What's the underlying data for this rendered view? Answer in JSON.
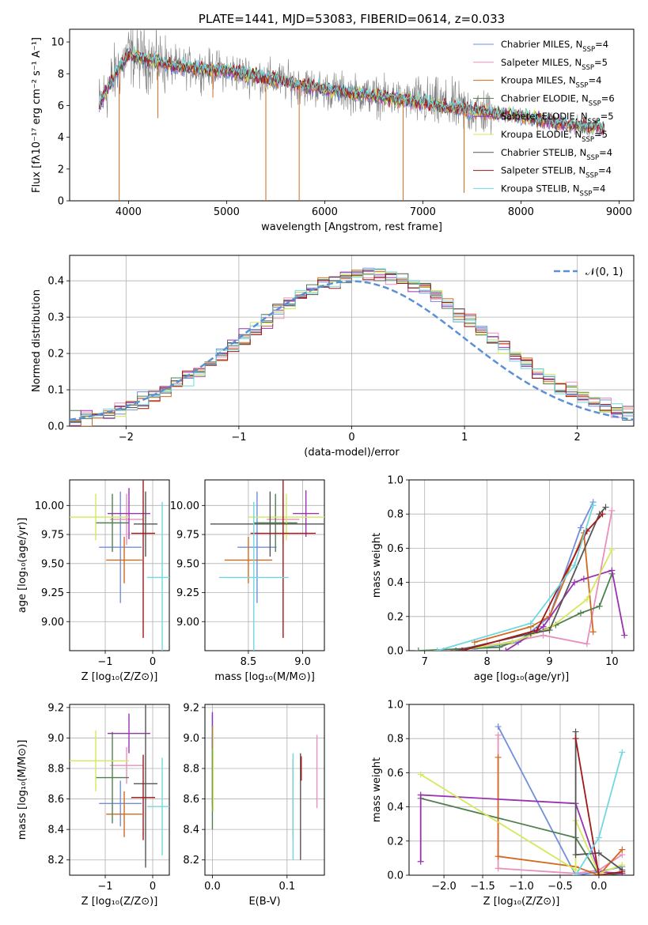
{
  "colors": {
    "chabrier_miles": "#6f8fdc",
    "salpeter_miles": "#e88fbe",
    "kroupa_miles": "#d2691e",
    "chabrier_elodie": "#4f7f4f",
    "salpeter_elodie": "#9932b0",
    "kroupa_elodie": "#d4e85a",
    "chabrier_stelib": "#555555",
    "salpeter_stelib": "#a01818",
    "kroupa_stelib": "#70d8e0",
    "data": "#808080",
    "normal": "#5b8fd6"
  },
  "chart_data": [
    {
      "id": "spectrum",
      "type": "line",
      "title": "PLATE=1441, MJD=53083, FIBERID=0614, z=0.033",
      "xlabel": "wavelength [Angstrom, rest frame]",
      "ylabel": "Flux [fλ10⁻¹⁷ erg cm⁻² s⁻¹ A⁻¹]",
      "xlim": [
        3400,
        9150
      ],
      "ylim": [
        0,
        10.8
      ],
      "xticks": [
        "4000",
        "5000",
        "6000",
        "7000",
        "8000",
        "9000"
      ],
      "yticks": [
        "0",
        "2",
        "4",
        "6",
        "8",
        "10"
      ],
      "grid": false,
      "legend_position": "upper-right",
      "series": [
        {
          "name": "Chabrier MILES, N",
          "sub": "SSP",
          "suffix": "=4",
          "color_key": "chabrier_miles"
        },
        {
          "name": "Salpeter MILES, N",
          "sub": "SSP",
          "suffix": "=5",
          "color_key": "salpeter_miles"
        },
        {
          "name": "Kroupa MILES, N",
          "sub": "SSP",
          "suffix": "=4",
          "color_key": "kroupa_miles"
        },
        {
          "name": "Chabrier ELODIE, N",
          "sub": "SSP",
          "suffix": "=6",
          "color_key": "chabrier_elodie"
        },
        {
          "name": "Salpeter ELODIE, N",
          "sub": "SSP",
          "suffix": "=5",
          "color_key": "salpeter_elodie"
        },
        {
          "name": "Kroupa ELODIE, N",
          "sub": "SSP",
          "suffix": "=5",
          "color_key": "kroupa_elodie"
        },
        {
          "name": "Chabrier STELIB, N",
          "sub": "SSP",
          "suffix": "=4",
          "color_key": "chabrier_stelib"
        },
        {
          "name": "Salpeter STELIB, N",
          "sub": "SSP",
          "suffix": "=4",
          "color_key": "salpeter_stelib"
        },
        {
          "name": "Kroupa STELIB, N",
          "sub": "SSP",
          "suffix": "=4",
          "color_key": "kroupa_stelib"
        }
      ],
      "continuum": [
        [
          3700,
          6.0
        ],
        [
          3800,
          7.2
        ],
        [
          3900,
          8.3
        ],
        [
          4000,
          9.2
        ],
        [
          4200,
          8.9
        ],
        [
          4500,
          8.4
        ],
        [
          5000,
          8.2
        ],
        [
          5500,
          7.6
        ],
        [
          6000,
          7.0
        ],
        [
          6500,
          6.6
        ],
        [
          7000,
          6.2
        ],
        [
          7500,
          5.7
        ],
        [
          8000,
          5.3
        ],
        [
          8500,
          4.8
        ],
        [
          8850,
          4.6
        ]
      ],
      "spikes": [
        [
          3905,
          0
        ],
        [
          4300,
          5.2
        ],
        [
          4860,
          6.5
        ],
        [
          5400,
          0
        ],
        [
          5740,
          0
        ],
        [
          6800,
          0
        ],
        [
          7420,
          0.5
        ]
      ]
    },
    {
      "id": "residuals",
      "type": "histogram",
      "xlabel": "(data-model)/error",
      "ylabel": "Normed distribution",
      "xlim": [
        -2.5,
        2.5
      ],
      "ylim": [
        0,
        0.47
      ],
      "xticks": [
        "−2",
        "−1",
        "0",
        "1",
        "2"
      ],
      "yticks": [
        "0.0",
        "0.1",
        "0.2",
        "0.3",
        "0.4"
      ],
      "grid": true,
      "legend_position": "upper-right",
      "reference_curve": {
        "name": "𝒩(0, 1)",
        "mean": 0,
        "sigma": 1
      },
      "bin_width": 0.1
    },
    {
      "id": "age_vs_Z",
      "type": "errorbar",
      "xlabel": "Z [log₁₀(Z/Z⊙)]",
      "ylabel": "age  [log₁₀(age/yr)]",
      "xlim": [
        -1.75,
        0.35
      ],
      "ylim": [
        8.75,
        10.22
      ],
      "xticks": [
        "−1",
        "0"
      ],
      "yticks": [
        "9.00",
        "9.25",
        "9.50",
        "9.75",
        "10.00"
      ],
      "grid": true,
      "points": [
        {
          "key": "chabrier_miles",
          "x": -0.68,
          "y": 9.64,
          "xerr": 0.45,
          "yerr": 0.48
        },
        {
          "key": "salpeter_miles",
          "x": -0.55,
          "y": 9.88,
          "xerr": 0.35,
          "yerr": 0.22
        },
        {
          "key": "kroupa_miles",
          "x": -0.6,
          "y": 9.53,
          "xerr": 0.38,
          "yerr": 0.2
        },
        {
          "key": "chabrier_elodie",
          "x": -0.85,
          "y": 9.85,
          "xerr": 0.35,
          "yerr": 0.25
        },
        {
          "key": "salpeter_elodie",
          "x": -0.5,
          "y": 9.93,
          "xerr": 0.45,
          "yerr": 0.22
        },
        {
          "key": "kroupa_elodie",
          "x": -1.2,
          "y": 9.9,
          "xerr": 0.7,
          "yerr": 0.2
        },
        {
          "key": "chabrier_stelib",
          "x": -0.15,
          "y": 9.84,
          "xerr": 0.25,
          "yerr": 0.28
        },
        {
          "key": "salpeter_stelib",
          "x": -0.2,
          "y": 9.76,
          "xerr": 0.25,
          "yerr": 0.9
        },
        {
          "key": "kroupa_stelib",
          "x": 0.2,
          "y": 9.38,
          "xerr": 0.32,
          "yerr": 0.65
        }
      ]
    },
    {
      "id": "age_vs_mass",
      "type": "errorbar",
      "xlabel": "mass [log₁₀(M/M⊙)]",
      "ylabel": "",
      "xlim": [
        8.1,
        9.2
      ],
      "ylim": [
        8.75,
        10.22
      ],
      "xticks": [
        "8.5",
        "9.0"
      ],
      "yticks": [
        "9.00",
        "9.25",
        "9.50",
        "9.75",
        "10.00"
      ],
      "grid": true,
      "points": [
        {
          "key": "chabrier_miles",
          "x": 8.58,
          "y": 9.64,
          "xerr": 0.18,
          "yerr": 0.48
        },
        {
          "key": "salpeter_miles",
          "x": 8.82,
          "y": 9.88,
          "xerr": 0.15,
          "yerr": 0.22
        },
        {
          "key": "kroupa_miles",
          "x": 8.5,
          "y": 9.53,
          "xerr": 0.22,
          "yerr": 0.2
        },
        {
          "key": "chabrier_elodie",
          "x": 8.75,
          "y": 9.85,
          "xerr": 0.2,
          "yerr": 0.25
        },
        {
          "key": "salpeter_elodie",
          "x": 9.03,
          "y": 9.93,
          "xerr": 0.12,
          "yerr": 0.2
        },
        {
          "key": "kroupa_elodie",
          "x": 8.85,
          "y": 9.9,
          "xerr": 0.35,
          "yerr": 0.2
        },
        {
          "key": "chabrier_stelib",
          "x": 8.7,
          "y": 9.84,
          "xerr": 0.55,
          "yerr": 0.28
        },
        {
          "key": "salpeter_stelib",
          "x": 8.82,
          "y": 9.76,
          "xerr": 0.3,
          "yerr": 0.9
        },
        {
          "key": "kroupa_stelib",
          "x": 8.55,
          "y": 9.38,
          "xerr": 0.32,
          "yerr": 0.65
        }
      ]
    },
    {
      "id": "weight_vs_age",
      "type": "line",
      "xlabel": "age  [log₁₀(age/yr)]",
      "ylabel": "mass weight",
      "xlim": [
        6.75,
        10.35
      ],
      "ylim": [
        0,
        1.0
      ],
      "xticks": [
        "7",
        "8",
        "9",
        "10"
      ],
      "yticks": [
        "0.0",
        "0.2",
        "0.4",
        "0.6",
        "0.8",
        "1.0"
      ],
      "grid": true,
      "series": [
        {
          "key": "chabrier_miles",
          "points": [
            [
              7.8,
              0.01
            ],
            [
              8.5,
              0.05
            ],
            [
              9.0,
              0.2
            ],
            [
              9.5,
              0.72
            ],
            [
              9.7,
              0.87
            ]
          ]
        },
        {
          "key": "salpeter_miles",
          "points": [
            [
              7.3,
              0.0
            ],
            [
              8.2,
              0.04
            ],
            [
              8.9,
              0.09
            ],
            [
              9.6,
              0.04
            ],
            [
              10.0,
              0.82
            ]
          ]
        },
        {
          "key": "kroupa_miles",
          "points": [
            [
              7.8,
              0.05
            ],
            [
              8.7,
              0.14
            ],
            [
              9.0,
              0.2
            ],
            [
              9.55,
              0.69
            ],
            [
              9.7,
              0.11
            ]
          ]
        },
        {
          "key": "chabrier_elodie",
          "points": [
            [
              6.9,
              0.0
            ],
            [
              8.2,
              0.02
            ],
            [
              9.1,
              0.15
            ],
            [
              9.5,
              0.22
            ],
            [
              9.8,
              0.26
            ],
            [
              10.0,
              0.45
            ]
          ]
        },
        {
          "key": "salpeter_elodie",
          "points": [
            [
              8.3,
              0.0
            ],
            [
              8.9,
              0.14
            ],
            [
              9.4,
              0.4
            ],
            [
              9.55,
              0.42
            ],
            [
              10.0,
              0.47
            ],
            [
              10.2,
              0.09
            ]
          ]
        },
        {
          "key": "kroupa_elodie",
          "points": [
            [
              7.5,
              0.0
            ],
            [
              8.4,
              0.05
            ],
            [
              9.0,
              0.13
            ],
            [
              9.6,
              0.3
            ],
            [
              10.0,
              0.59
            ]
          ]
        },
        {
          "key": "chabrier_stelib",
          "points": [
            [
              7.5,
              0.0
            ],
            [
              8.7,
              0.1
            ],
            [
              9.0,
              0.12
            ],
            [
              9.8,
              0.8
            ],
            [
              9.9,
              0.84
            ]
          ]
        },
        {
          "key": "salpeter_stelib",
          "points": [
            [
              7.6,
              0.0
            ],
            [
              8.8,
              0.12
            ],
            [
              9.6,
              0.7
            ],
            [
              9.85,
              0.8
            ]
          ]
        },
        {
          "key": "kroupa_stelib",
          "points": [
            [
              7.2,
              0.0
            ],
            [
              8.7,
              0.16
            ],
            [
              9.4,
              0.5
            ],
            [
              9.7,
              0.85
            ]
          ]
        }
      ]
    },
    {
      "id": "mass_vs_Z",
      "type": "errorbar",
      "xlabel": "Z [log₁₀(Z/Z⊙)]",
      "ylabel": "mass [log₁₀(M/M⊙)]",
      "xlim": [
        -1.75,
        0.35
      ],
      "ylim": [
        8.1,
        9.22
      ],
      "xticks": [
        "−1",
        "0"
      ],
      "yticks": [
        "8.2",
        "8.4",
        "8.6",
        "8.8",
        "9.0",
        "9.2"
      ],
      "grid": true,
      "points": [
        {
          "key": "chabrier_miles",
          "x": -0.68,
          "y": 8.57,
          "xerr": 0.45,
          "yerr": 0.15
        },
        {
          "key": "salpeter_miles",
          "x": -0.55,
          "y": 8.82,
          "xerr": 0.35,
          "yerr": 0.12
        },
        {
          "key": "kroupa_miles",
          "x": -0.6,
          "y": 8.5,
          "xerr": 0.38,
          "yerr": 0.15
        },
        {
          "key": "chabrier_elodie",
          "x": -0.85,
          "y": 8.74,
          "xerr": 0.35,
          "yerr": 0.3
        },
        {
          "key": "salpeter_elodie",
          "x": -0.5,
          "y": 9.03,
          "xerr": 0.45,
          "yerr": 0.13
        },
        {
          "key": "kroupa_elodie",
          "x": -1.2,
          "y": 8.85,
          "xerr": 0.7,
          "yerr": 0.2
        },
        {
          "key": "chabrier_stelib",
          "x": -0.15,
          "y": 8.7,
          "xerr": 0.25,
          "yerr": 0.55
        },
        {
          "key": "salpeter_stelib",
          "x": -0.2,
          "y": 8.61,
          "xerr": 0.25,
          "yerr": 0.28
        },
        {
          "key": "kroupa_stelib",
          "x": 0.2,
          "y": 8.55,
          "xerr": 0.32,
          "yerr": 0.32
        }
      ]
    },
    {
      "id": "mass_vs_ebv",
      "type": "errorbar",
      "xlabel": "E(B-V)",
      "ylabel": "",
      "xlim": [
        -0.01,
        0.15
      ],
      "ylim": [
        8.1,
        9.22
      ],
      "xticks": [
        "0.0",
        "0.1"
      ],
      "yticks": [
        "8.2",
        "8.4",
        "8.6",
        "8.8",
        "9.0",
        "9.2"
      ],
      "grid": true,
      "points": [
        {
          "key": "chabrier_miles",
          "x": 0.0,
          "y": 8.85,
          "xerr": 0.0,
          "yerr": 0.3
        },
        {
          "key": "salpeter_miles",
          "x": 0.14,
          "y": 8.78,
          "xerr": 0.0,
          "yerr": 0.24
        },
        {
          "key": "kroupa_miles",
          "x": 0.108,
          "y": 8.6,
          "xerr": 0.0,
          "yerr": 0.26
        },
        {
          "key": "chabrier_elodie",
          "x": 0.0,
          "y": 8.7,
          "xerr": 0.0,
          "yerr": 0.3
        },
        {
          "key": "salpeter_elodie",
          "x": 0.0,
          "y": 9.05,
          "xerr": 0.0,
          "yerr": 0.12
        },
        {
          "key": "kroupa_elodie",
          "x": 0.001,
          "y": 8.8,
          "xerr": 0.0,
          "yerr": 0.28
        },
        {
          "key": "chabrier_stelib",
          "x": 0.118,
          "y": 8.55,
          "xerr": 0.0,
          "yerr": 0.35
        },
        {
          "key": "salpeter_stelib",
          "x": 0.119,
          "y": 8.8,
          "xerr": 0.0,
          "yerr": 0.08
        },
        {
          "key": "kroupa_stelib",
          "x": 0.108,
          "y": 8.55,
          "xerr": 0.0,
          "yerr": 0.35
        }
      ]
    },
    {
      "id": "weight_vs_Z",
      "type": "line",
      "xlabel": "Z [log₁₀(Z/Z⊙)]",
      "ylabel": "mass weight",
      "xlim": [
        -2.45,
        0.45
      ],
      "ylim": [
        0,
        1.0
      ],
      "xticks": [
        "−2.0",
        "−1.5",
        "−1.0",
        "−0.5",
        "0.0"
      ],
      "yticks": [
        "0.0",
        "0.2",
        "0.4",
        "0.6",
        "0.8",
        "1.0"
      ],
      "grid": true,
      "series": [
        {
          "key": "chabrier_miles",
          "points": [
            [
              -1.3,
              0.87
            ],
            [
              -0.3,
              0.0
            ],
            [
              0.0,
              0.02
            ],
            [
              0.3,
              0.05
            ]
          ]
        },
        {
          "key": "salpeter_miles",
          "points": [
            [
              -1.3,
              0.82
            ],
            [
              -1.3,
              0.04
            ],
            [
              -0.3,
              0.01
            ],
            [
              0.0,
              0.03
            ],
            [
              0.3,
              0.12
            ]
          ]
        },
        {
          "key": "kroupa_miles",
          "points": [
            [
              -1.3,
              0.69
            ],
            [
              -1.3,
              0.11
            ],
            [
              -0.3,
              0.05
            ],
            [
              0.0,
              0.0
            ],
            [
              0.3,
              0.15
            ]
          ]
        },
        {
          "key": "chabrier_elodie",
          "points": [
            [
              -2.3,
              0.45
            ],
            [
              -0.3,
              0.22
            ],
            [
              0.0,
              0.0
            ],
            [
              0.3,
              0.01
            ]
          ]
        },
        {
          "key": "salpeter_elodie",
          "points": [
            [
              -2.3,
              0.08
            ],
            [
              -2.3,
              0.47
            ],
            [
              -0.3,
              0.42
            ],
            [
              0.0,
              0.02
            ],
            [
              0.3,
              0.01
            ]
          ]
        },
        {
          "key": "kroupa_elodie",
          "points": [
            [
              -2.3,
              0.59
            ],
            [
              -0.3,
              0.03
            ],
            [
              -0.3,
              0.32
            ],
            [
              0.0,
              0.01
            ],
            [
              0.3,
              0.06
            ]
          ]
        },
        {
          "key": "chabrier_stelib",
          "points": [
            [
              -0.3,
              0.84
            ],
            [
              -0.3,
              0.12
            ],
            [
              0.0,
              0.13
            ],
            [
              0.3,
              0.03
            ]
          ]
        },
        {
          "key": "salpeter_stelib",
          "points": [
            [
              -0.3,
              0.8
            ],
            [
              0.0,
              0.0
            ],
            [
              0.3,
              0.02
            ]
          ]
        },
        {
          "key": "kroupa_stelib",
          "points": [
            [
              -0.3,
              0.0
            ],
            [
              0.0,
              0.22
            ],
            [
              0.3,
              0.72
            ]
          ]
        }
      ]
    }
  ]
}
